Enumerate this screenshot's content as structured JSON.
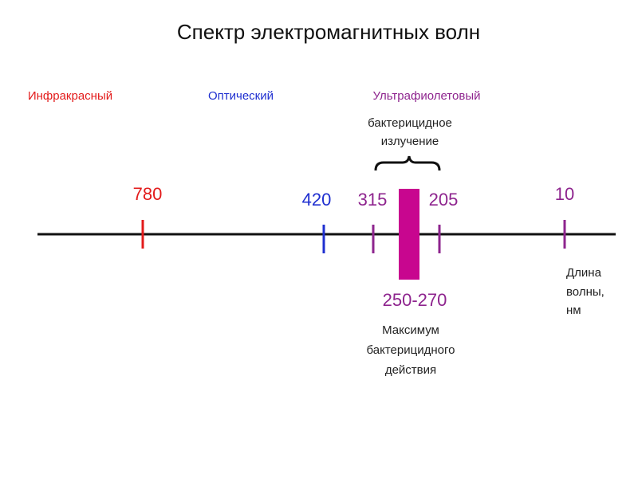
{
  "title": "Спектр электромагнитных волн",
  "regions": [
    "Инфракрасный",
    "Оптический",
    "Ультрафиолетовый"
  ],
  "bracket_label": [
    "бактерицидное",
    "излучение"
  ],
  "ticks": [
    "780",
    "420",
    "315",
    "205",
    "10"
  ],
  "band_label": "250-270",
  "band_note": [
    "Максимум",
    "бактерицидного",
    "действия"
  ],
  "axis_note": [
    "Длина",
    "волны,",
    "нм"
  ]
}
